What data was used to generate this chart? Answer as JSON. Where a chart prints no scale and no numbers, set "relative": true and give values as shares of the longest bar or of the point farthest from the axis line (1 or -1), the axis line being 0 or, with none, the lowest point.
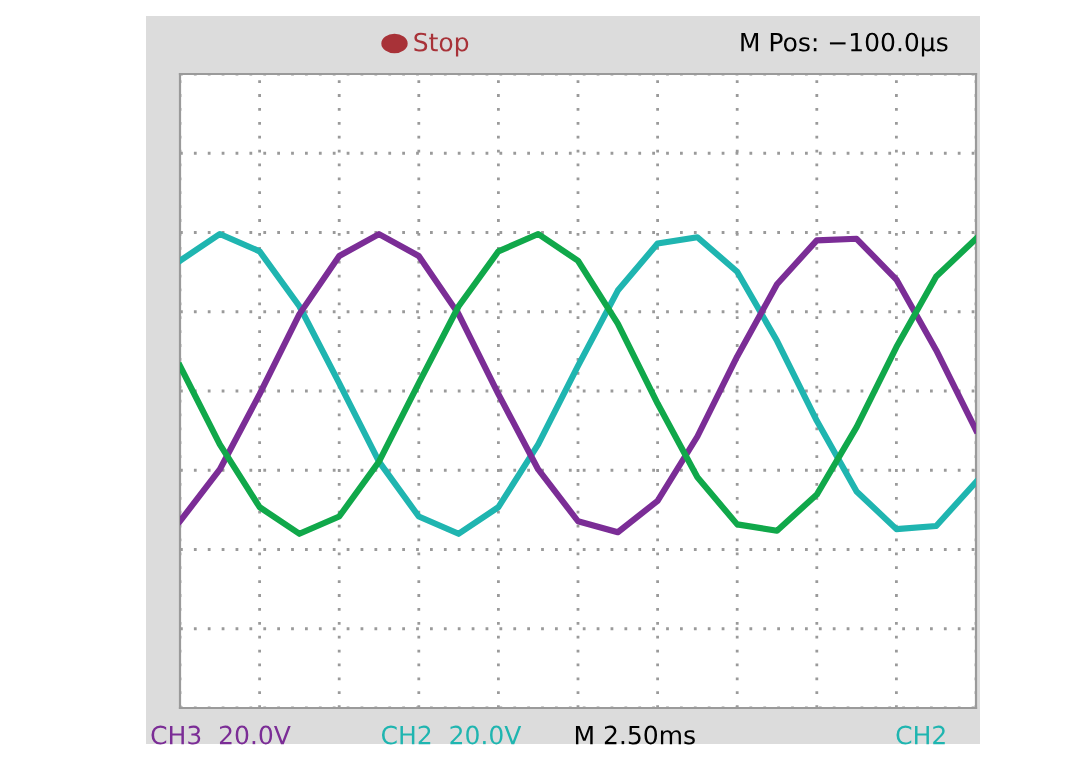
{
  "chart_data": {
    "type": "line",
    "relative": true,
    "grid": true,
    "line_style": "solid",
    "categories": [
      null,
      null,
      null,
      null,
      null,
      null,
      null,
      null,
      null,
      null,
      null,
      null,
      null,
      null,
      null,
      null,
      null,
      null,
      null,
      null,
      null
    ],
    "series": [
      {
        "color": "#1fb5b0",
        "values": [
          0.83,
          1.0,
          0.89,
          0.54,
          0.05,
          -0.45,
          -0.8,
          -0.91,
          -0.74,
          -0.34,
          0.16,
          0.64,
          0.94,
          0.98,
          0.76,
          0.32,
          -0.19,
          -0.64,
          -0.88,
          -0.86,
          -0.58
        ]
      },
      {
        "color": "#7b2d96",
        "values": [
          -0.83,
          -0.5,
          -0.02,
          0.49,
          0.86,
          1.0,
          0.86,
          0.49,
          -0.02,
          -0.5,
          -0.83,
          -0.9,
          -0.7,
          -0.29,
          0.22,
          0.68,
          0.96,
          0.97,
          0.71,
          0.26,
          -0.25
        ]
      },
      {
        "color": "#10a84a",
        "values": [
          0.16,
          -0.34,
          -0.74,
          -0.91,
          -0.8,
          -0.45,
          0.05,
          0.54,
          0.89,
          1.0,
          0.83,
          0.43,
          -0.08,
          -0.55,
          -0.85,
          -0.89,
          -0.66,
          -0.23,
          0.28,
          0.73,
          0.97
        ]
      }
    ],
    "annotations": [
      "Stop",
      "M Pos: −100.0µs",
      "CH3  20.0V",
      "CH2  20.0V",
      "M 2.50ms",
      "CH2"
    ]
  }
}
